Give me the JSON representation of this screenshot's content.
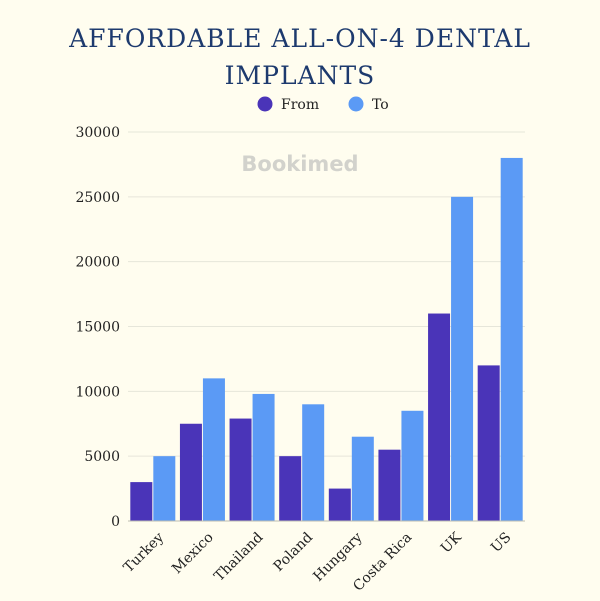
{
  "title_lines": [
    "AFFORDABLE ALL-ON-4 DENTAL",
    "IMPLANTS"
  ],
  "watermark": "Bookimed",
  "colors": {
    "From": "#4a34b8",
    "To": "#5b9af5",
    "title": "#1d3a6e",
    "background": "#fffdef"
  },
  "chart_data": {
    "type": "bar",
    "title": "AFFORDABLE ALL-ON-4 DENTAL IMPLANTS",
    "categories": [
      "Turkey",
      "Mexico",
      "Thailand",
      "Poland",
      "Hungary",
      "Costa Rica",
      "UK",
      "US"
    ],
    "series": [
      {
        "name": "From",
        "values": [
          3000,
          7500,
          7900,
          5000,
          2500,
          5500,
          16000,
          12000
        ]
      },
      {
        "name": "To",
        "values": [
          5000,
          11000,
          9800,
          9000,
          6500,
          8500,
          25000,
          28000
        ]
      }
    ],
    "yticks": [
      "0",
      "5000",
      "10000",
      "15000",
      "20000",
      "25000",
      "30000"
    ],
    "ylim": [
      0,
      30000
    ],
    "xlabel": "",
    "ylabel": "",
    "grid": true,
    "legend": "top-center"
  }
}
